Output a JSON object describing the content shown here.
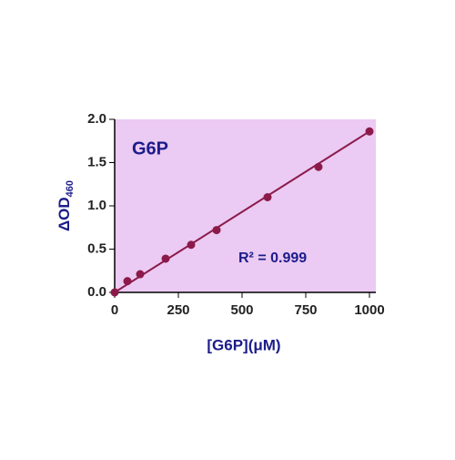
{
  "chart_data": {
    "type": "scatter",
    "title": "G6P",
    "annotation": "R² = 0.999",
    "xlabel": "[G6P](μM)",
    "ylabel": {
      "text": "ΔOD",
      "subscript": "460"
    },
    "x": [
      0,
      50,
      100,
      200,
      300,
      400,
      600,
      800,
      1000
    ],
    "series": [
      {
        "color": "#8b1a4a",
        "values": [
          0.0,
          0.13,
          0.21,
          0.39,
          0.55,
          0.72,
          1.1,
          1.45,
          1.86
        ]
      }
    ],
    "trendline": {
      "x": [
        0,
        1000
      ],
      "values": [
        0.0,
        1.86
      ],
      "color": "#8b1a4a"
    },
    "xlim": [
      0,
      1025
    ],
    "ylim": [
      0,
      2.0
    ],
    "xticks": [
      0,
      250,
      500,
      750,
      1000
    ],
    "yticks": [
      {
        "value": 0,
        "label": "0.0"
      },
      0.5,
      {
        "value": 1.0,
        "label": "1.0"
      },
      1.5,
      {
        "value": 2.0,
        "label": "2.0"
      }
    ],
    "plot_background": "#ebcaf3"
  }
}
